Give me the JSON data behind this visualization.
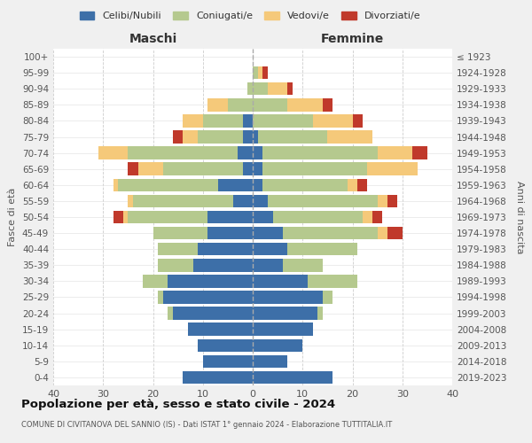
{
  "age_groups": [
    "0-4",
    "5-9",
    "10-14",
    "15-19",
    "20-24",
    "25-29",
    "30-34",
    "35-39",
    "40-44",
    "45-49",
    "50-54",
    "55-59",
    "60-64",
    "65-69",
    "70-74",
    "75-79",
    "80-84",
    "85-89",
    "90-94",
    "95-99",
    "100+"
  ],
  "birth_years": [
    "2019-2023",
    "2014-2018",
    "2009-2013",
    "2004-2008",
    "1999-2003",
    "1994-1998",
    "1989-1993",
    "1984-1988",
    "1979-1983",
    "1974-1978",
    "1969-1973",
    "1964-1968",
    "1959-1963",
    "1954-1958",
    "1949-1953",
    "1944-1948",
    "1939-1943",
    "1934-1938",
    "1929-1933",
    "1924-1928",
    "≤ 1923"
  ],
  "colors": {
    "celibi": "#3d6fa8",
    "coniugati": "#b5c98e",
    "vedovi": "#f5c97a",
    "divorziati": "#c0392b"
  },
  "maschi": {
    "celibi": [
      14,
      10,
      11,
      13,
      16,
      18,
      17,
      12,
      11,
      9,
      9,
      4,
      7,
      2,
      3,
      2,
      2,
      0,
      0,
      0,
      0
    ],
    "coniugati": [
      0,
      0,
      0,
      0,
      1,
      1,
      5,
      7,
      8,
      11,
      16,
      20,
      20,
      16,
      22,
      9,
      8,
      5,
      1,
      0,
      0
    ],
    "vedovi": [
      0,
      0,
      0,
      0,
      0,
      0,
      0,
      0,
      0,
      0,
      1,
      1,
      1,
      5,
      6,
      3,
      4,
      4,
      0,
      0,
      0
    ],
    "divorziati": [
      0,
      0,
      0,
      0,
      0,
      0,
      0,
      0,
      0,
      0,
      2,
      0,
      0,
      2,
      0,
      2,
      0,
      0,
      0,
      0,
      0
    ]
  },
  "femmine": {
    "celibi": [
      16,
      7,
      10,
      12,
      13,
      14,
      11,
      6,
      7,
      6,
      4,
      3,
      2,
      2,
      2,
      1,
      0,
      0,
      0,
      0,
      0
    ],
    "coniugati": [
      0,
      0,
      0,
      0,
      1,
      2,
      10,
      8,
      14,
      19,
      18,
      22,
      17,
      21,
      23,
      14,
      12,
      7,
      3,
      1,
      0
    ],
    "vedovi": [
      0,
      0,
      0,
      0,
      0,
      0,
      0,
      0,
      0,
      2,
      2,
      2,
      2,
      10,
      7,
      9,
      8,
      7,
      4,
      1,
      0
    ],
    "divorziati": [
      0,
      0,
      0,
      0,
      0,
      0,
      0,
      0,
      0,
      3,
      2,
      2,
      2,
      0,
      3,
      0,
      2,
      2,
      1,
      1,
      0
    ]
  },
  "xlim": 40,
  "title": "Popolazione per età, sesso e stato civile - 2024",
  "subtitle": "COMUNE DI CIVITANOVA DEL SANNIO (IS) - Dati ISTAT 1° gennaio 2024 - Elaborazione TUTTITALIA.IT",
  "xlabel_left": "Maschi",
  "xlabel_right": "Femmine",
  "ylabel_left": "Fasce di età",
  "ylabel_right": "Anni di nascita",
  "legend_labels": [
    "Celibi/Nubili",
    "Coniugati/e",
    "Vedovi/e",
    "Divorziati/e"
  ],
  "bg_color": "#f0f0f0",
  "plot_bg_color": "#ffffff"
}
